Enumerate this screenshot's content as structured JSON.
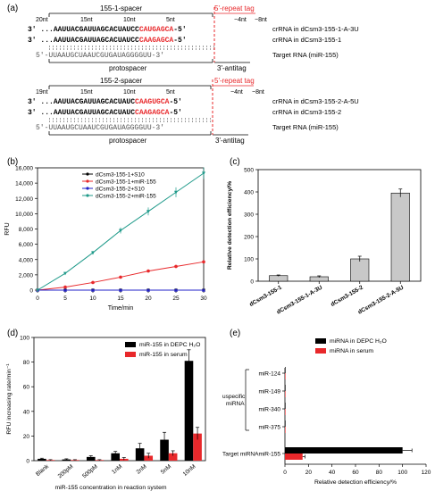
{
  "panel_a": {
    "label": "(a)",
    "block1": {
      "spacer_label": "155-1-spacer",
      "repeat_tag_label": "5'-repeat tag",
      "pos_labels": [
        "20nt",
        "15nt",
        "10nt",
        "5nt",
        "−4nt",
        "−8nt"
      ],
      "row1_prefix": "3'",
      "row1_seq_black": "AAUUACGAUUAGCACUAUCC",
      "row1_seq_red": "CAUGAGCA",
      "row1_suffix": "-5'",
      "row1_desc": "crRNA in dCsm3-155-1-A-3U",
      "row2_prefix": "3'",
      "row2_seq_black": "AAUUACGAUUAGCACUAUCC",
      "row2_seq_red": "CAAGAGCA",
      "row2_suffix": "-5'",
      "row2_desc": "crRNA in dCsm3-155-1",
      "row3_seq": "5'-UUAAUGCUAAUCGUGAUAGGGGUU-3'",
      "row3_desc": "Target RNA (miR-155)",
      "protospacer_label": "protospacer",
      "antitag_label": "3'-antitag"
    },
    "block2": {
      "spacer_label": "155-2-spacer",
      "repeat_tag_label": "5'-repeat tag",
      "pos_labels": [
        "19nt",
        "15nt",
        "10nt",
        "5nt",
        "−4nt",
        "−8nt"
      ],
      "row1_prefix": "3'",
      "row1_seq_black": "AAUUACGAUUAGCACUAUC",
      "row1_seq_red": "CAAGUGCA",
      "row1_suffix": "-5'",
      "row1_desc": "crRNA in dCsm3-155-2-A-5U",
      "row2_prefix": "3'",
      "row2_seq_black": "AAUUACGAUUAGCACUAUC",
      "row2_seq_red": "CAAGAGCA",
      "row2_suffix": "-5'",
      "row2_desc": "crRNA in dCsm3-155-2",
      "row3_seq": "5'-UUAAUGCUAAUCGUGAUAGGGGUU-3'",
      "row3_desc": "Target RNA (miR-155)",
      "protospacer_label": "protospacer",
      "antitag_label": "3'-antitag"
    }
  },
  "panel_b": {
    "label": "(b)"
  },
  "panel_c": {
    "label": "(c)"
  },
  "panel_d": {
    "label": "(d)"
  },
  "panel_e": {
    "label": "(e)",
    "bracket_label_1": "uspecific",
    "bracket_label_2": "miRNA",
    "target_label": "Target miRNA"
  },
  "colors": {
    "black": "#000000",
    "red": "#e8282b",
    "blue": "#2020c8",
    "teal": "#1f9a8a",
    "gray_bar": "#c8c8c8"
  },
  "chart_data": [
    {
      "panel": "b",
      "type": "line",
      "xlabel": "Time/min",
      "ylabel": "RFU",
      "x": [
        0,
        5,
        10,
        15,
        20,
        25,
        30
      ],
      "xticks": [
        "0",
        "5",
        "10",
        "15",
        "20",
        "25",
        "30"
      ],
      "yticks": [
        "0",
        "2,000",
        "4,000",
        "6,000",
        "8,000",
        "10,000",
        "12,000",
        "14,000",
        "16,000"
      ],
      "xlim": [
        0,
        30
      ],
      "ylim": [
        0,
        16000
      ],
      "legend": "top-left",
      "series": [
        {
          "name": "dCsm3-155-1+S10",
          "color": "#000000",
          "values": [
            0,
            0,
            0,
            0,
            0,
            0,
            0
          ]
        },
        {
          "name": "dCsm3-155-1+miR-155",
          "color": "#e8282b",
          "values": [
            0,
            400,
            1000,
            1700,
            2500,
            3100,
            3700
          ]
        },
        {
          "name": "dCsm3-155-2+S10",
          "color": "#2020c8",
          "values": [
            0,
            0,
            0,
            0,
            0,
            0,
            0
          ]
        },
        {
          "name": "dCsm3-155-2+miR-155",
          "color": "#1f9a8a",
          "values": [
            0,
            2200,
            4900,
            7800,
            10300,
            12800,
            15300
          ]
        }
      ]
    },
    {
      "panel": "c",
      "type": "bar",
      "ylabel": "Relative detection efficiency/%",
      "categories": [
        "dCsm3-155-1",
        "dCsm3-155-1-A-3U",
        "dCsm3-155-2",
        "dCsm3-155-2-A-5U"
      ],
      "values": [
        25,
        20,
        100,
        395
      ],
      "errors": [
        3,
        4,
        12,
        18
      ],
      "yticks": [
        "0",
        "100",
        "200",
        "300",
        "400",
        "500"
      ],
      "ylim": [
        0,
        500
      ]
    },
    {
      "panel": "d",
      "type": "bar",
      "xlabel": "miR-155 concentration in reaction system",
      "ylabel": "RFU increasing rate/min⁻¹",
      "categories": [
        "Blank",
        "200pM",
        "500pM",
        "1nM",
        "2nM",
        "5nM",
        "10nM"
      ],
      "yticks": [
        "0",
        "20",
        "40",
        "60",
        "80",
        "100"
      ],
      "ylim": [
        0,
        100
      ],
      "legend": "top-right",
      "series": [
        {
          "name": "miR-155 in DEPC H₂O",
          "color": "#000000",
          "values": [
            1.5,
            1,
            3,
            6,
            10,
            17,
            81
          ],
          "errors": [
            0.5,
            0.5,
            1,
            1.5,
            4,
            6,
            9
          ]
        },
        {
          "name": "miR-155 in serum",
          "color": "#e8282b",
          "values": [
            0.5,
            0.5,
            0.5,
            1.5,
            4,
            6,
            22
          ],
          "errors": [
            0.3,
            0.3,
            0.3,
            1,
            2,
            2,
            5
          ]
        }
      ]
    },
    {
      "panel": "e",
      "type": "bar",
      "orientation": "horizontal",
      "xlabel": "Relative detection efficiency/%",
      "categories": [
        "miR-124",
        "miR-149",
        "miR-340",
        "miR-375",
        "miR-155"
      ],
      "xticks": [
        "0",
        "20",
        "40",
        "60",
        "80",
        "100",
        "120"
      ],
      "xlim": [
        0,
        120
      ],
      "legend": "top-right",
      "series": [
        {
          "name": "miRNA in  DEPC H₂O",
          "color": "#000000",
          "values": [
            0.5,
            0.5,
            0.5,
            0.5,
            100
          ],
          "errors": [
            0,
            0,
            0,
            0,
            8
          ]
        },
        {
          "name": "miRNA in serum",
          "color": "#e8282b",
          "values": [
            0.3,
            0.3,
            0.3,
            0.3,
            15
          ],
          "errors": [
            0,
            0,
            0,
            0,
            2
          ]
        }
      ]
    }
  ]
}
